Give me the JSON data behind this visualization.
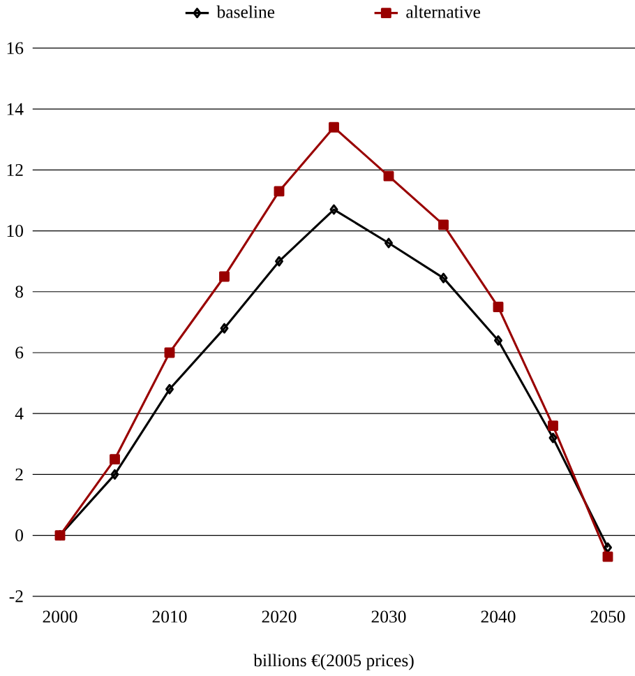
{
  "chart_data": {
    "type": "line",
    "xlabel": "billions €(2005 prices)",
    "x": [
      2000,
      2005,
      2010,
      2015,
      2020,
      2025,
      2030,
      2035,
      2040,
      2045,
      2050
    ],
    "series": [
      {
        "name": "baseline",
        "color": "#000000",
        "marker": "diamond",
        "values": [
          0,
          2.0,
          4.8,
          6.8,
          9.0,
          10.7,
          9.6,
          8.45,
          6.4,
          3.2,
          -0.4
        ]
      },
      {
        "name": "alternative",
        "color": "#990000",
        "marker": "square",
        "values": [
          0,
          2.5,
          6.0,
          8.5,
          11.3,
          13.4,
          11.8,
          10.2,
          7.5,
          3.6,
          -0.7
        ]
      }
    ],
    "xlim": [
      1997.5,
      2052.5
    ],
    "xticks": [
      2000,
      2010,
      2020,
      2030,
      2040,
      2050
    ],
    "ylim": [
      -2,
      16
    ],
    "yticks": [
      -2,
      0,
      2,
      4,
      6,
      8,
      10,
      12,
      14,
      16
    ],
    "grid": "y",
    "legend": "top",
    "line_style": "solid"
  }
}
